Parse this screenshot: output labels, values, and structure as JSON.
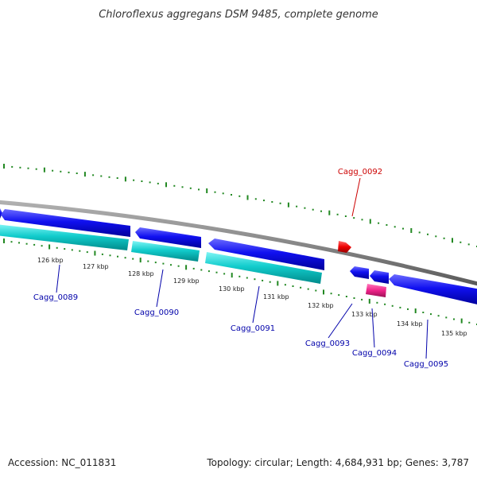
{
  "title": "Chloroflexus aggregans DSM 9485, complete genome",
  "footer": {
    "accession": "Accession: NC_011831",
    "summary": "Topology: circular; Length: 4,684,931 bp; Genes: 3,787"
  },
  "colors": {
    "backbone": "#888888",
    "forward_gene": "#0000ee",
    "reverse_gene": "#00cccc",
    "rna": "#ee0000",
    "pseudo": "#ee2288",
    "tick": "#228822",
    "label_blue": "#0000aa",
    "label_red": "#cc0000"
  },
  "position_labels": [
    {
      "text": "126 kbp"
    },
    {
      "text": "127 kbp"
    },
    {
      "text": "128 kbp"
    },
    {
      "text": "129 kbp"
    },
    {
      "text": "130 kbp"
    },
    {
      "text": "131 kbp"
    },
    {
      "text": "132 kbp"
    },
    {
      "text": "133 kbp"
    },
    {
      "text": "134 kbp"
    },
    {
      "text": "135 kbp"
    }
  ],
  "gene_labels": [
    {
      "text": "Cagg_0089",
      "color": "label_blue"
    },
    {
      "text": "Cagg_0090",
      "color": "label_blue"
    },
    {
      "text": "Cagg_0091",
      "color": "label_blue"
    },
    {
      "text": "Cagg_0092",
      "color": "label_red"
    },
    {
      "text": "Cagg_0093",
      "color": "label_blue"
    },
    {
      "text": "Cagg_0094",
      "color": "label_blue"
    },
    {
      "text": "Cagg_0095",
      "color": "label_blue"
    }
  ]
}
